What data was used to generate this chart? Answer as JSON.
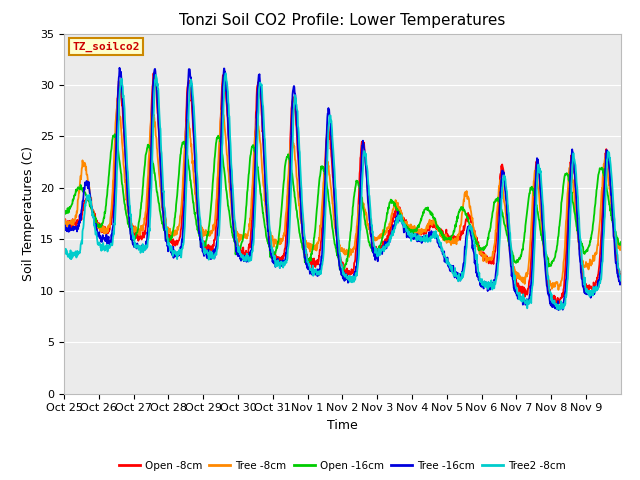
{
  "title": "Tonzi Soil CO2 Profile: Lower Temperatures",
  "xlabel": "Time",
  "ylabel": "Soil Temperatures (C)",
  "ylim": [
    0,
    35
  ],
  "yticks": [
    0,
    5,
    10,
    15,
    20,
    25,
    30,
    35
  ],
  "xlabels": [
    "Oct 25",
    "Oct 26",
    "Oct 27",
    "Oct 28",
    "Oct 29",
    "Oct 30",
    "Oct 31",
    "Nov 1",
    "Nov 2",
    "Nov 3",
    "Nov 4",
    "Nov 5",
    "Nov 6",
    "Nov 7",
    "Nov 8",
    "Nov 9"
  ],
  "legend_labels": [
    "Open -8cm",
    "Tree -8cm",
    "Open -16cm",
    "Tree -16cm",
    "Tree2 -8cm"
  ],
  "legend_colors": [
    "#ff0000",
    "#ff8800",
    "#00cc00",
    "#0000dd",
    "#00cccc"
  ],
  "annotation_text": "TZ_soilco2",
  "annotation_bg": "#ffffcc",
  "annotation_border": "#cc8800",
  "annotation_color": "#cc0000",
  "plot_bg": "#ebebeb",
  "title_fontsize": 11,
  "axis_fontsize": 9,
  "tick_fontsize": 8,
  "line_width": 1.3
}
